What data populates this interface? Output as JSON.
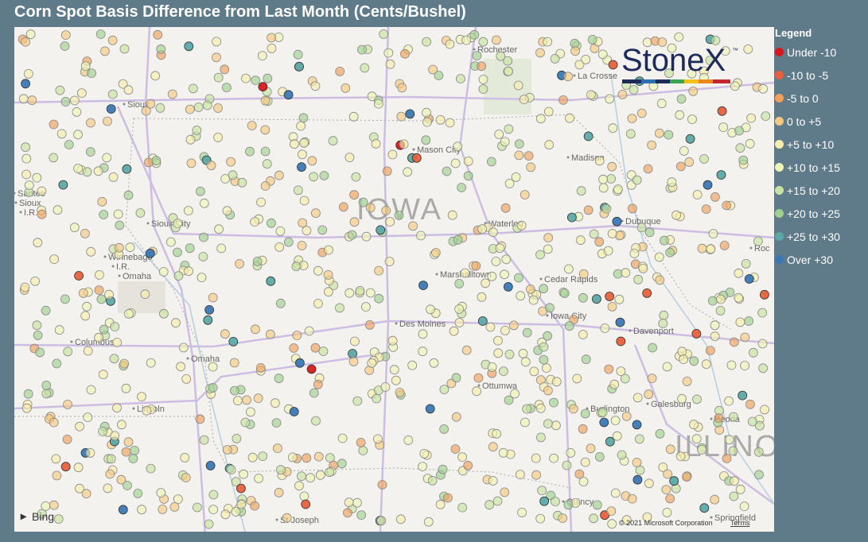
{
  "header": {
    "title": "Corn Spot Basis Difference from Last Month (Cents/Bushel)"
  },
  "legend": {
    "title": "Legend",
    "items": [
      {
        "label": "Under -10",
        "color": "#d7191c"
      },
      {
        "label": "-10 to -5",
        "color": "#e8603c"
      },
      {
        "label": "-5 to 0",
        "color": "#f0a05a"
      },
      {
        "label": "0 to +5",
        "color": "#f6c97e"
      },
      {
        "label": "+5 to +10",
        "color": "#f7ecaa"
      },
      {
        "label": "+10 to +15",
        "color": "#eef5b4"
      },
      {
        "label": "+15 to +20",
        "color": "#c8e4a0"
      },
      {
        "label": "+20 to +25",
        "color": "#9fd190"
      },
      {
        "label": "+25 to +30",
        "color": "#5ba9a6"
      },
      {
        "label": "Over +30",
        "color": "#3a78b5"
      }
    ]
  },
  "map": {
    "states": [
      "IOWA",
      "ILLINOIS"
    ],
    "places": [
      "Rochester",
      "La Crosse",
      "Sioux",
      "Mason City",
      "Madison",
      "Santee",
      "Sioux",
      "I.R.",
      "Sioux City",
      "Dubuque",
      "Waterloo",
      "Winnebago",
      "I.R.",
      "Omaha",
      "Cedar Rapids",
      "Marshalltown",
      "Columbus",
      "Omaha",
      "Des Moines",
      "Iowa City",
      "Davenport",
      "Ottumwa",
      "Lincoln",
      "Galesburg",
      "Burlington",
      "Peoria",
      "St Joseph",
      "Quincy",
      "Springfield",
      "Roc"
    ],
    "logo": {
      "name": "StoneX",
      "mark": "™"
    },
    "provider": "Bing",
    "copyright": "© 2021 Microsoft Corporation",
    "terms": "Terms"
  }
}
